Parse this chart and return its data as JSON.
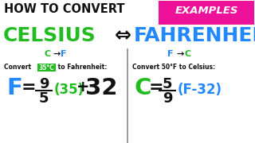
{
  "bg_color": "#ffffff",
  "title_text": "HOW TO CONVERT",
  "title_color": "#000000",
  "celsius_text": "CELSIUS",
  "celsius_color": "#22bb22",
  "arrow_text": "⇔",
  "fahrenheit_text": "FAHRENHEIT",
  "fahrenheit_color": "#2288ff",
  "examples_text": "EXAMPLES",
  "examples_bg": "#ee1199",
  "examples_color": "#ffffff",
  "convert_left_plain": "Convert ",
  "convert_left_highlight": "35°C",
  "convert_left_rest": " to Fahrenheit:",
  "convert_right_text": "Convert 50°F to Celsius:",
  "green": "#22bb22",
  "blue": "#2288ff",
  "black": "#111111",
  "white": "#ffffff",
  "divider_color": "#888888"
}
